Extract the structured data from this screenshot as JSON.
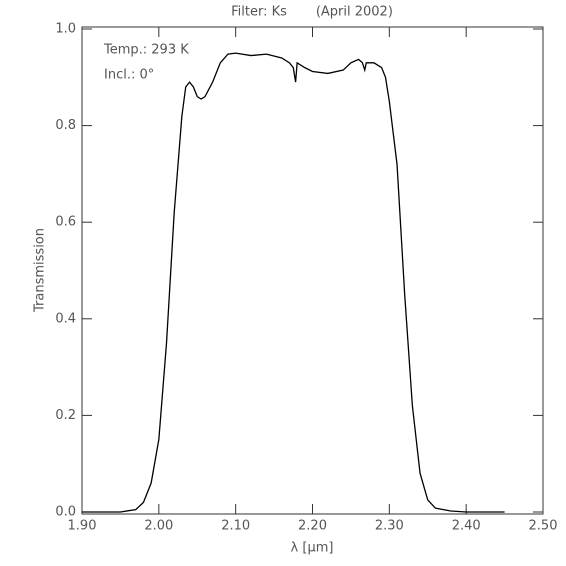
{
  "chart_data": {
    "type": "line",
    "title": "Filter: Ks       (April 2002)",
    "annotations": [
      "Temp.: 293 K",
      "Incl.: 0°"
    ],
    "xlabel": "λ [μm]",
    "ylabel": "Transmission",
    "color": "#000000",
    "x": [
      1.9,
      1.95,
      1.97,
      1.98,
      1.99,
      2.0,
      2.01,
      2.02,
      2.03,
      2.035,
      2.04,
      2.045,
      2.05,
      2.055,
      2.06,
      2.07,
      2.08,
      2.09,
      2.1,
      2.12,
      2.14,
      2.16,
      2.17,
      2.175,
      2.178,
      2.18,
      2.19,
      2.2,
      2.22,
      2.24,
      2.25,
      2.26,
      2.265,
      2.268,
      2.27,
      2.28,
      2.29,
      2.295,
      2.3,
      2.31,
      2.32,
      2.33,
      2.34,
      2.35,
      2.36,
      2.38,
      2.4,
      2.45
    ],
    "values": [
      0.0,
      0.0,
      0.005,
      0.02,
      0.06,
      0.15,
      0.35,
      0.62,
      0.82,
      0.88,
      0.89,
      0.88,
      0.86,
      0.855,
      0.86,
      0.89,
      0.93,
      0.948,
      0.95,
      0.945,
      0.948,
      0.94,
      0.93,
      0.92,
      0.89,
      0.93,
      0.92,
      0.912,
      0.908,
      0.915,
      0.93,
      0.937,
      0.93,
      0.915,
      0.93,
      0.93,
      0.92,
      0.9,
      0.85,
      0.72,
      0.45,
      0.22,
      0.08,
      0.025,
      0.008,
      0.002,
      0.0,
      0.0
    ],
    "xlim": [
      1.9,
      2.5
    ],
    "xticks": [
      {
        "value": 1.9,
        "label": "1.90"
      },
      {
        "value": 2.0,
        "label": "2.00"
      },
      {
        "value": 2.1,
        "label": "2.10"
      },
      {
        "value": 2.2,
        "label": "2.20"
      },
      {
        "value": 2.3,
        "label": "2.30"
      },
      {
        "value": 2.4,
        "label": "2.40"
      },
      {
        "value": 2.5,
        "label": "2.50"
      }
    ],
    "ylim": [
      0,
      1
    ],
    "yticks": [
      {
        "value": 0,
        "label": "0.0"
      },
      {
        "value": 0.2,
        "label": "0.2"
      },
      {
        "value": 0.4,
        "label": "0.4"
      },
      {
        "value": 0.6,
        "label": "0.6"
      },
      {
        "value": 0.8,
        "label": "0.8"
      },
      {
        "value": 1,
        "label": "1.0"
      }
    ],
    "grid": false
  }
}
